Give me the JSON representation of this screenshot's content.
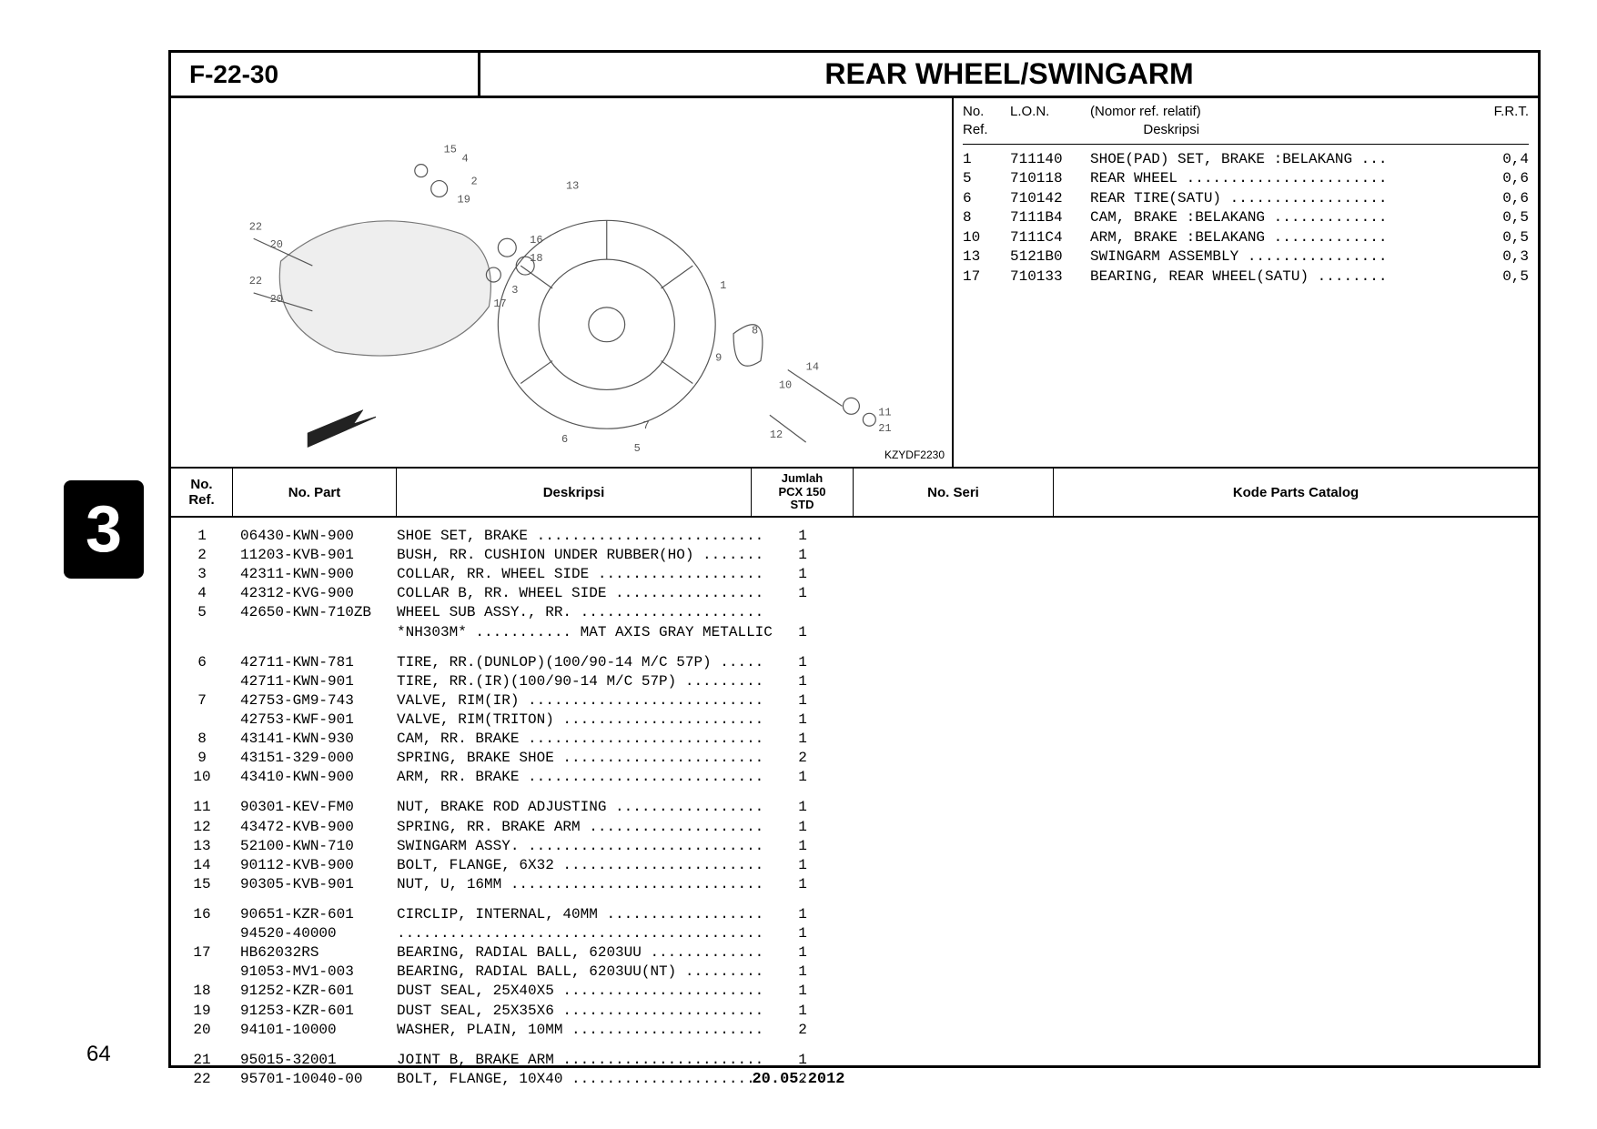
{
  "section_code": "F-22-30",
  "section_title": "REAR WHEEL/SWINGARM",
  "diagram_code": "KZYDF2230",
  "ref_table": {
    "headers": {
      "noref": "No.\nRef.",
      "lon": "L.O.N.",
      "desc_top": "(Nomor ref. relatif)",
      "desc": "Deskripsi",
      "frt": "F.R.T."
    },
    "rows": [
      {
        "noref": "1",
        "lon": "711140",
        "desc": "SHOE(PAD) SET, BRAKE :BELAKANG",
        "frt": "0,4"
      },
      {
        "noref": "5",
        "lon": "710118",
        "desc": "REAR WHEEL",
        "frt": "0,6"
      },
      {
        "noref": "6",
        "lon": "710142",
        "desc": "REAR TIRE(SATU)",
        "frt": "0,6"
      },
      {
        "noref": "8",
        "lon": "7111B4",
        "desc": "CAM, BRAKE :BELAKANG",
        "frt": "0,5"
      },
      {
        "noref": "10",
        "lon": "7111C4",
        "desc": "ARM, BRAKE :BELAKANG",
        "frt": "0,5"
      },
      {
        "noref": "13",
        "lon": "5121B0",
        "desc": "SWINGARM ASSEMBLY",
        "frt": "0,3"
      },
      {
        "noref": "17",
        "lon": "710133",
        "desc": "BEARING, REAR WHEEL(SATU)",
        "frt": "0,5"
      }
    ]
  },
  "parts_headers": {
    "noref": "No.\nRef.",
    "part": "No. Part",
    "desc": "Deskripsi",
    "qty": "Jumlah\nPCX 150\nSTD",
    "seri": "No. Seri",
    "kode": "Kode Parts Catalog"
  },
  "parts_groups": [
    [
      {
        "noref": "1",
        "part": "06430-KWN-900",
        "desc": "SHOE SET, BRAKE",
        "qty": "1"
      },
      {
        "noref": "2",
        "part": "11203-KVB-901",
        "desc": "BUSH, RR. CUSHION UNDER RUBBER(HO)",
        "qty": "1"
      },
      {
        "noref": "3",
        "part": "42311-KWN-900",
        "desc": "COLLAR, RR. WHEEL SIDE",
        "qty": "1"
      },
      {
        "noref": "4",
        "part": "42312-KVG-900",
        "desc": "COLLAR B, RR. WHEEL SIDE",
        "qty": "1"
      },
      {
        "noref": "5",
        "part": "42650-KWN-710ZB",
        "desc": "WHEEL SUB ASSY., RR.",
        "qty": ""
      },
      {
        "noref": "",
        "part": "",
        "desc": "*NH303M* ........... MAT AXIS GRAY METALLIC",
        "qty": "1",
        "nolead": true
      }
    ],
    [
      {
        "noref": "6",
        "part": "42711-KWN-781",
        "desc": "TIRE, RR.(DUNLOP)(100/90-14 M/C 57P)",
        "qty": "1"
      },
      {
        "noref": "",
        "part": "42711-KWN-901",
        "desc": "TIRE, RR.(IR)(100/90-14 M/C 57P)",
        "qty": "1"
      },
      {
        "noref": "7",
        "part": "42753-GM9-743",
        "desc": "VALVE, RIM(IR)",
        "qty": "1"
      },
      {
        "noref": "",
        "part": "42753-KWF-901",
        "desc": "VALVE, RIM(TRITON)",
        "qty": "1"
      },
      {
        "noref": "8",
        "part": "43141-KWN-930",
        "desc": "CAM, RR. BRAKE",
        "qty": "1"
      },
      {
        "noref": "9",
        "part": "43151-329-000",
        "desc": "SPRING, BRAKE SHOE",
        "qty": "2"
      },
      {
        "noref": "10",
        "part": "43410-KWN-900",
        "desc": "ARM, RR. BRAKE",
        "qty": "1"
      }
    ],
    [
      {
        "noref": "11",
        "part": "90301-KEV-FM0",
        "desc": "NUT, BRAKE ROD ADJUSTING",
        "qty": "1"
      },
      {
        "noref": "12",
        "part": "43472-KVB-900",
        "desc": "SPRING, RR. BRAKE ARM",
        "qty": "1"
      },
      {
        "noref": "13",
        "part": "52100-KWN-710",
        "desc": "SWINGARM ASSY.",
        "qty": "1"
      },
      {
        "noref": "14",
        "part": "90112-KVB-900",
        "desc": "BOLT, FLANGE, 6X32",
        "qty": "1"
      },
      {
        "noref": "15",
        "part": "90305-KVB-901",
        "desc": "NUT, U, 16MM",
        "qty": "1"
      }
    ],
    [
      {
        "noref": "16",
        "part": "90651-KZR-601",
        "desc": "CIRCLIP, INTERNAL, 40MM",
        "qty": "1"
      },
      {
        "noref": "",
        "part": "94520-40000",
        "desc": "",
        "qty": "1",
        "alldots": true
      },
      {
        "noref": "17",
        "part": "HB62032RS",
        "desc": "BEARING, RADIAL BALL, 6203UU",
        "qty": "1"
      },
      {
        "noref": "",
        "part": "91053-MV1-003",
        "desc": "BEARING, RADIAL BALL, 6203UU(NT)",
        "qty": "1"
      },
      {
        "noref": "18",
        "part": "91252-KZR-601",
        "desc": "DUST SEAL, 25X40X5",
        "qty": "1"
      },
      {
        "noref": "19",
        "part": "91253-KZR-601",
        "desc": "DUST SEAL, 25X35X6",
        "qty": "1"
      },
      {
        "noref": "20",
        "part": "94101-10000",
        "desc": "WASHER, PLAIN, 10MM",
        "qty": "2"
      }
    ],
    [
      {
        "noref": "21",
        "part": "95015-32001",
        "desc": "JOINT B, BRAKE ARM",
        "qty": "1"
      },
      {
        "noref": "22",
        "part": "95701-10040-00",
        "desc": "BOLT, FLANGE, 10X40",
        "qty": "2"
      }
    ]
  ],
  "side_tab": "3",
  "page_number": "64",
  "footer_date": "20.05.2012",
  "style": {
    "desc_col_width_chars": 42,
    "ref_desc_col_width_chars": 34
  }
}
